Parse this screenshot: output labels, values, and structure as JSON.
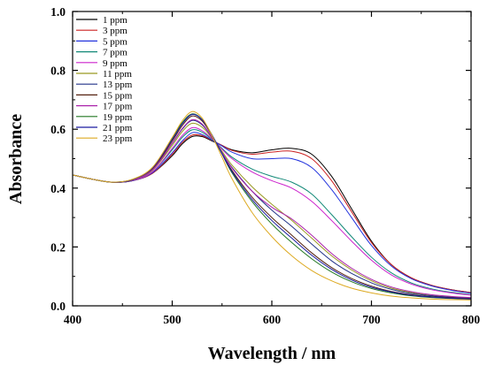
{
  "chart_data": {
    "type": "line",
    "xlabel": "Wavelength / nm",
    "ylabel": "Absorbance",
    "xlim": [
      400,
      800
    ],
    "ylim": [
      0.0,
      1.0
    ],
    "x_ticks": [
      400,
      500,
      600,
      700,
      800
    ],
    "x_tick_labels": [
      "400",
      "500",
      "600",
      "700",
      "800"
    ],
    "y_ticks": [
      0.0,
      0.2,
      0.4,
      0.6,
      0.8,
      1.0
    ],
    "y_tick_labels": [
      "0.0",
      "0.2",
      "0.4",
      "0.6",
      "0.8",
      "1.0"
    ],
    "grid": false,
    "legend_position": "top-left",
    "x": [
      400,
      420,
      440,
      460,
      480,
      500,
      510,
      520,
      530,
      540,
      550,
      560,
      580,
      600,
      620,
      640,
      660,
      680,
      700,
      720,
      740,
      760,
      780,
      800
    ],
    "series": [
      {
        "name": "1 ppm",
        "color": "#000000",
        "values": [
          0.445,
          0.43,
          0.42,
          0.425,
          0.45,
          0.51,
          0.55,
          0.575,
          0.575,
          0.56,
          0.545,
          0.53,
          0.52,
          0.53,
          0.535,
          0.515,
          0.44,
          0.33,
          0.22,
          0.14,
          0.095,
          0.07,
          0.055,
          0.045
        ]
      },
      {
        "name": "3 ppm",
        "color": "#cc2222",
        "values": [
          0.445,
          0.43,
          0.42,
          0.425,
          0.45,
          0.515,
          0.555,
          0.58,
          0.578,
          0.562,
          0.545,
          0.528,
          0.515,
          0.522,
          0.525,
          0.5,
          0.425,
          0.32,
          0.215,
          0.14,
          0.095,
          0.07,
          0.055,
          0.045
        ]
      },
      {
        "name": "5 ppm",
        "color": "#2233dd",
        "values": [
          0.445,
          0.43,
          0.42,
          0.425,
          0.452,
          0.52,
          0.56,
          0.588,
          0.582,
          0.563,
          0.543,
          0.522,
          0.5,
          0.5,
          0.5,
          0.47,
          0.395,
          0.3,
          0.205,
          0.135,
          0.092,
          0.068,
          0.053,
          0.043
        ]
      },
      {
        "name": "7 ppm",
        "color": "#118877",
        "values": [
          0.445,
          0.43,
          0.42,
          0.426,
          0.455,
          0.53,
          0.572,
          0.598,
          0.59,
          0.565,
          0.535,
          0.505,
          0.465,
          0.44,
          0.42,
          0.38,
          0.31,
          0.235,
          0.165,
          0.112,
          0.078,
          0.058,
          0.046,
          0.038
        ]
      },
      {
        "name": "9 ppm",
        "color": "#cc22cc",
        "values": [
          0.445,
          0.43,
          0.42,
          0.426,
          0.455,
          0.535,
          0.578,
          0.605,
          0.595,
          0.567,
          0.532,
          0.5,
          0.455,
          0.425,
          0.4,
          0.355,
          0.29,
          0.22,
          0.155,
          0.105,
          0.074,
          0.055,
          0.044,
          0.036
        ]
      },
      {
        "name": "11 ppm",
        "color": "#999922",
        "values": [
          0.445,
          0.43,
          0.42,
          0.427,
          0.46,
          0.545,
          0.592,
          0.62,
          0.607,
          0.57,
          0.525,
          0.478,
          0.405,
          0.345,
          0.29,
          0.23,
          0.17,
          0.122,
          0.085,
          0.06,
          0.045,
          0.035,
          0.03,
          0.027
        ]
      },
      {
        "name": "13 ppm",
        "color": "#223388",
        "values": [
          0.445,
          0.43,
          0.42,
          0.428,
          0.462,
          0.552,
          0.6,
          0.63,
          0.615,
          0.572,
          0.52,
          0.47,
          0.39,
          0.325,
          0.27,
          0.21,
          0.153,
          0.11,
          0.078,
          0.056,
          0.042,
          0.034,
          0.029,
          0.026
        ]
      },
      {
        "name": "15 ppm",
        "color": "#552211",
        "values": [
          0.445,
          0.43,
          0.42,
          0.428,
          0.465,
          0.56,
          0.612,
          0.645,
          0.628,
          0.578,
          0.518,
          0.46,
          0.37,
          0.3,
          0.24,
          0.18,
          0.13,
          0.093,
          0.067,
          0.049,
          0.038,
          0.031,
          0.027,
          0.024
        ]
      },
      {
        "name": "17 ppm",
        "color": "#aa22aa",
        "values": [
          0.445,
          0.43,
          0.42,
          0.428,
          0.462,
          0.553,
          0.602,
          0.632,
          0.618,
          0.573,
          0.52,
          0.468,
          0.39,
          0.335,
          0.295,
          0.24,
          0.178,
          0.128,
          0.09,
          0.064,
          0.048,
          0.038,
          0.032,
          0.028
        ]
      },
      {
        "name": "19 ppm",
        "color": "#227722",
        "values": [
          0.445,
          0.43,
          0.42,
          0.429,
          0.468,
          0.568,
          0.622,
          0.652,
          0.633,
          0.58,
          0.516,
          0.452,
          0.355,
          0.278,
          0.215,
          0.16,
          0.115,
          0.082,
          0.059,
          0.044,
          0.034,
          0.028,
          0.025,
          0.022
        ]
      },
      {
        "name": "21 ppm",
        "color": "#1a1aa0",
        "values": [
          0.445,
          0.43,
          0.42,
          0.429,
          0.468,
          0.565,
          0.618,
          0.65,
          0.632,
          0.58,
          0.517,
          0.456,
          0.362,
          0.29,
          0.23,
          0.172,
          0.124,
          0.088,
          0.063,
          0.047,
          0.036,
          0.03,
          0.026,
          0.023
        ]
      },
      {
        "name": "23 ppm",
        "color": "#ddaa22",
        "values": [
          0.445,
          0.43,
          0.42,
          0.43,
          0.47,
          0.572,
          0.628,
          0.66,
          0.638,
          0.578,
          0.505,
          0.432,
          0.318,
          0.235,
          0.17,
          0.12,
          0.085,
          0.06,
          0.044,
          0.033,
          0.027,
          0.023,
          0.021,
          0.02
        ]
      }
    ]
  }
}
